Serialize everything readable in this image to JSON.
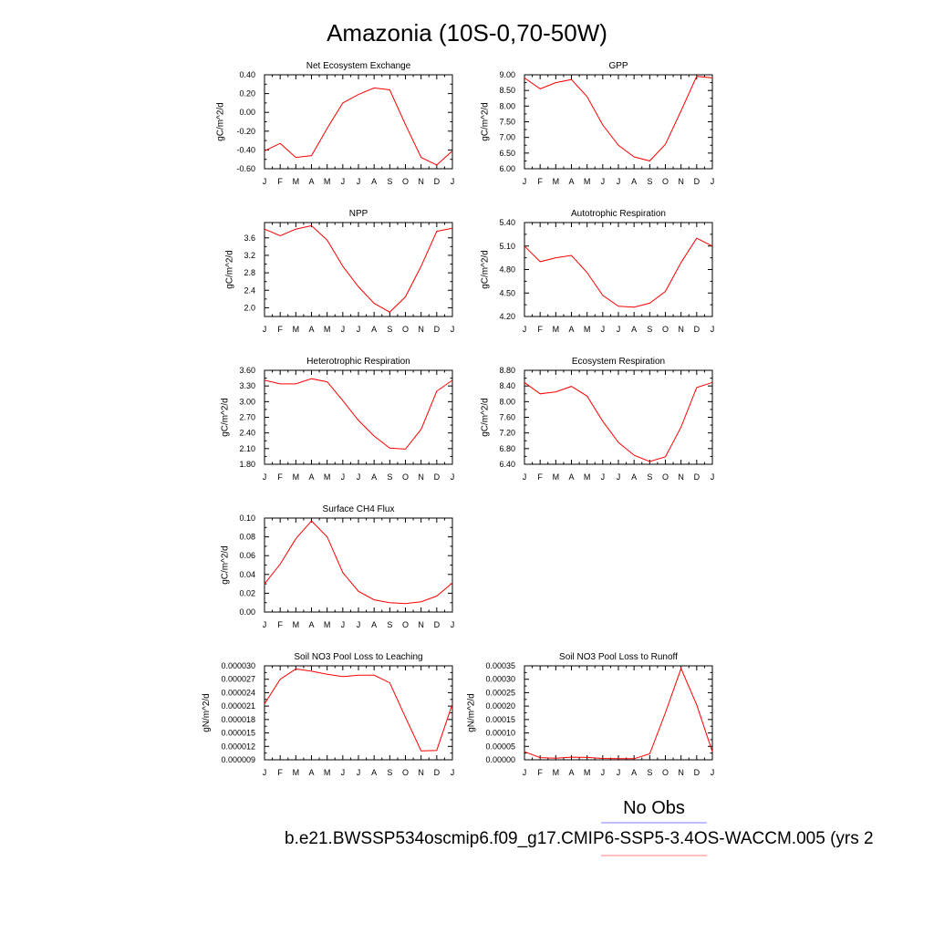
{
  "figure": {
    "title": "Amazonia (10S-0,70-50W)",
    "legend": {
      "obs_label": "No Obs",
      "obs_color": "#7f7fff",
      "case_label": "b.e21.BWSSP534oscmip6.f09_g17.CMIP6-SSP5-3.4OS-WACCM.005 (yrs 2",
      "case_color": "#ff7f7f"
    }
  },
  "chart_data": [
    {
      "type": "line",
      "title": "Net Ecosystem Exchange",
      "ylabel": "gC/m^2/d",
      "x": [
        "J",
        "F",
        "M",
        "A",
        "M",
        "J",
        "J",
        "A",
        "S",
        "O",
        "N",
        "D",
        "J"
      ],
      "ylim": [
        -0.6,
        0.4
      ],
      "yticks": [
        "-0.60",
        "-0.40",
        "-0.20",
        "0.00",
        "0.20",
        "0.40"
      ],
      "series": [
        {
          "color": "#ff0000",
          "values": [
            -0.41,
            -0.33,
            -0.48,
            -0.46,
            -0.17,
            0.1,
            0.19,
            0.26,
            0.24,
            -0.13,
            -0.48,
            -0.56,
            -0.41
          ]
        }
      ]
    },
    {
      "type": "line",
      "title": "GPP",
      "ylabel": "gC/m^2/d",
      "x": [
        "J",
        "F",
        "M",
        "A",
        "M",
        "J",
        "J",
        "A",
        "S",
        "O",
        "N",
        "D",
        "J"
      ],
      "ylim": [
        6.0,
        9.0
      ],
      "yticks": [
        "6.00",
        "6.50",
        "7.00",
        "7.50",
        "8.00",
        "8.50",
        "9.00"
      ],
      "series": [
        {
          "color": "#ff0000",
          "values": [
            8.9,
            8.55,
            8.75,
            8.85,
            8.3,
            7.4,
            6.75,
            6.38,
            6.25,
            6.78,
            7.85,
            8.95,
            8.9
          ]
        }
      ]
    },
    {
      "type": "line",
      "title": "NPP",
      "ylabel": "gC/m^2/d",
      "x": [
        "J",
        "F",
        "M",
        "A",
        "M",
        "J",
        "J",
        "A",
        "S",
        "O",
        "N",
        "D",
        "J"
      ],
      "ylim": [
        1.8,
        3.95
      ],
      "yticks": [
        "2.0",
        "2.4",
        "2.8",
        "3.2",
        "3.6"
      ],
      "series": [
        {
          "color": "#ff0000",
          "values": [
            3.8,
            3.65,
            3.8,
            3.88,
            3.55,
            2.95,
            2.48,
            2.1,
            1.9,
            2.25,
            2.95,
            3.75,
            3.82
          ]
        }
      ]
    },
    {
      "type": "line",
      "title": "Autotrophic Respiration",
      "ylabel": "gC/m^2/d",
      "x": [
        "J",
        "F",
        "M",
        "A",
        "M",
        "J",
        "J",
        "A",
        "S",
        "O",
        "N",
        "D",
        "J"
      ],
      "ylim": [
        4.2,
        5.4
      ],
      "yticks": [
        "4.20",
        "4.50",
        "4.80",
        "5.10",
        "5.40"
      ],
      "series": [
        {
          "color": "#ff0000",
          "values": [
            5.1,
            4.9,
            4.95,
            4.98,
            4.76,
            4.47,
            4.33,
            4.32,
            4.37,
            4.52,
            4.89,
            5.2,
            5.1
          ]
        }
      ]
    },
    {
      "type": "line",
      "title": "Heterotrophic Respiration",
      "ylabel": "gC/m^2/d",
      "x": [
        "J",
        "F",
        "M",
        "A",
        "M",
        "J",
        "J",
        "A",
        "S",
        "O",
        "N",
        "D",
        "J"
      ],
      "ylim": [
        1.8,
        3.6
      ],
      "yticks": [
        "1.80",
        "2.10",
        "2.40",
        "2.70",
        "3.00",
        "3.30",
        "3.60"
      ],
      "series": [
        {
          "color": "#ff0000",
          "values": [
            3.41,
            3.34,
            3.34,
            3.44,
            3.38,
            3.02,
            2.64,
            2.34,
            2.11,
            2.09,
            2.47,
            3.2,
            3.41
          ]
        }
      ]
    },
    {
      "type": "line",
      "title": "Ecosystem Respiration",
      "ylabel": "gC/m^2/d",
      "x": [
        "J",
        "F",
        "M",
        "A",
        "M",
        "J",
        "J",
        "A",
        "S",
        "O",
        "N",
        "D",
        "J"
      ],
      "ylim": [
        6.4,
        8.8
      ],
      "yticks": [
        "6.40",
        "6.80",
        "7.20",
        "7.60",
        "8.00",
        "8.40",
        "8.80"
      ],
      "series": [
        {
          "color": "#ff0000",
          "values": [
            8.49,
            8.2,
            8.25,
            8.39,
            8.14,
            7.5,
            6.96,
            6.63,
            6.47,
            6.59,
            7.35,
            8.36,
            8.49
          ]
        }
      ]
    },
    {
      "type": "line",
      "title": "Surface CH4 Flux",
      "ylabel": "gC/m^2/d",
      "x": [
        "J",
        "F",
        "M",
        "A",
        "M",
        "J",
        "J",
        "A",
        "S",
        "O",
        "N",
        "D",
        "J"
      ],
      "ylim": [
        0.0,
        0.1
      ],
      "yticks": [
        "0.00",
        "0.02",
        "0.04",
        "0.06",
        "0.08",
        "0.10"
      ],
      "series": [
        {
          "color": "#ff0000",
          "values": [
            0.03,
            0.051,
            0.078,
            0.097,
            0.08,
            0.042,
            0.022,
            0.013,
            0.01,
            0.009,
            0.011,
            0.017,
            0.031
          ]
        }
      ]
    },
    {
      "type": "line",
      "title": "Soil NO3 Pool Loss to Leaching",
      "ylabel": "gN/m^2/d",
      "x": [
        "J",
        "F",
        "M",
        "A",
        "M",
        "J",
        "J",
        "A",
        "S",
        "O",
        "N",
        "D",
        "J"
      ],
      "ylim": [
        9e-06,
        3e-05
      ],
      "yticks": [
        "0.000009",
        "0.000012",
        "0.000015",
        "0.000018",
        "0.000021",
        "0.000024",
        "0.000027",
        "0.000030"
      ],
      "series": [
        {
          "color": "#ff0000",
          "values": [
            2.15e-05,
            2.7e-05,
            2.93e-05,
            2.88e-05,
            2.81e-05,
            2.76e-05,
            2.79e-05,
            2.79e-05,
            2.62e-05,
            1.85e-05,
            1.1e-05,
            1.11e-05,
            2.15e-05
          ]
        }
      ]
    },
    {
      "type": "line",
      "title": "Soil NO3 Pool Loss to Runoff",
      "ylabel": "gN/m^2/d",
      "x": [
        "J",
        "F",
        "M",
        "A",
        "M",
        "J",
        "J",
        "A",
        "S",
        "O",
        "N",
        "D",
        "J"
      ],
      "ylim": [
        0.0,
        0.00035
      ],
      "yticks": [
        "0.00000",
        "0.00005",
        "0.00010",
        "0.00015",
        "0.00020",
        "0.00025",
        "0.00030",
        "0.00035"
      ],
      "series": [
        {
          "color": "#ff0000",
          "values": [
            3e-05,
            8e-06,
            6e-06,
            1e-05,
            9e-06,
            5e-06,
            4e-06,
            4e-06,
            2.2e-05,
            0.000175,
            0.00034,
            0.000205,
            3e-05
          ]
        }
      ]
    }
  ]
}
